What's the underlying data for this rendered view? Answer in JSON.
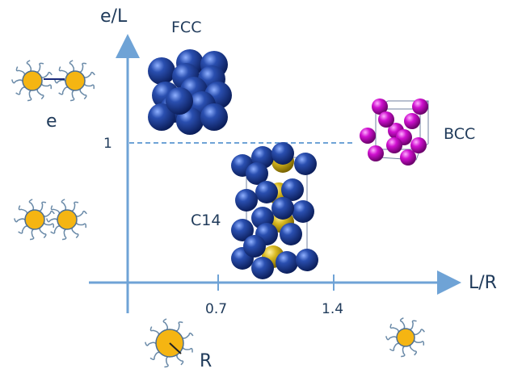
{
  "axes": {
    "y_label": "e/L",
    "x_label": "L/R",
    "x_ticks": [
      "0.7",
      "1.4"
    ],
    "y_ticks": [
      "1"
    ]
  },
  "phases": [
    {
      "label": "FCC"
    },
    {
      "label": "BCC"
    },
    {
      "label": "C14"
    }
  ],
  "annotations": {
    "spacing": "e",
    "radius": "R"
  }
}
